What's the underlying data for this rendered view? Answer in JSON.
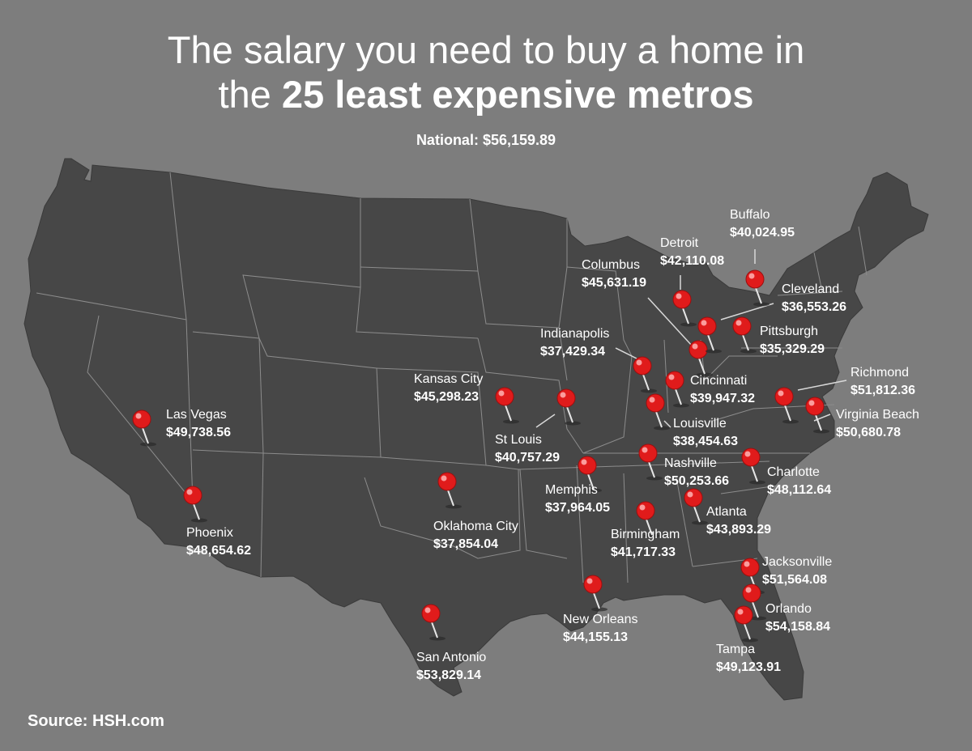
{
  "title": {
    "line1": "The salary you need to buy a home in",
    "line2_prefix": "the ",
    "line2_bold": "25 least expensive metros"
  },
  "national": {
    "label": "National:",
    "value": "$56,159.89"
  },
  "source": "Source: HSH.com",
  "colors": {
    "background": "#7d7d7d",
    "land": "#474747",
    "border": "#8c8c8c",
    "pin": "#e01b1b",
    "text": "#ffffff"
  },
  "metros": [
    {
      "name": "Buffalo",
      "salary": "$40,024.95"
    },
    {
      "name": "Detroit",
      "salary": "$42,110.08"
    },
    {
      "name": "Columbus",
      "salary": "$45,631.19"
    },
    {
      "name": "Cleveland",
      "salary": "$36,553.26"
    },
    {
      "name": "Pittsburgh",
      "salary": "$35,329.29"
    },
    {
      "name": "Indianapolis",
      "salary": "$37,429.34"
    },
    {
      "name": "Richmond",
      "salary": "$51,812.36"
    },
    {
      "name": "Cincinnati",
      "salary": "$39,947.32"
    },
    {
      "name": "Kansas City",
      "salary": "$45,298.23"
    },
    {
      "name": "Virginia Beach",
      "salary": "$50,680.78"
    },
    {
      "name": "Louisville",
      "salary": "$38,454.63"
    },
    {
      "name": "Las Vegas",
      "salary": "$49,738.56"
    },
    {
      "name": "St Louis",
      "salary": "$40,757.29"
    },
    {
      "name": "Nashville",
      "salary": "$50,253.66"
    },
    {
      "name": "Charlotte",
      "salary": "$48,112.64"
    },
    {
      "name": "Memphis",
      "salary": "$37,964.05"
    },
    {
      "name": "Atlanta",
      "salary": "$43,893.29"
    },
    {
      "name": "Phoenix",
      "salary": "$48,654.62"
    },
    {
      "name": "Oklahoma City",
      "salary": "$37,854.04"
    },
    {
      "name": "Birmingham",
      "salary": "$41,717.33"
    },
    {
      "name": "Jacksonville",
      "salary": "$51,564.08"
    },
    {
      "name": "New Orleans",
      "salary": "$44,155.13"
    },
    {
      "name": "Orlando",
      "salary": "$54,158.84"
    },
    {
      "name": "Tampa",
      "salary": "$49,123.91"
    },
    {
      "name": "San Antonio",
      "salary": "$53,829.14"
    }
  ]
}
